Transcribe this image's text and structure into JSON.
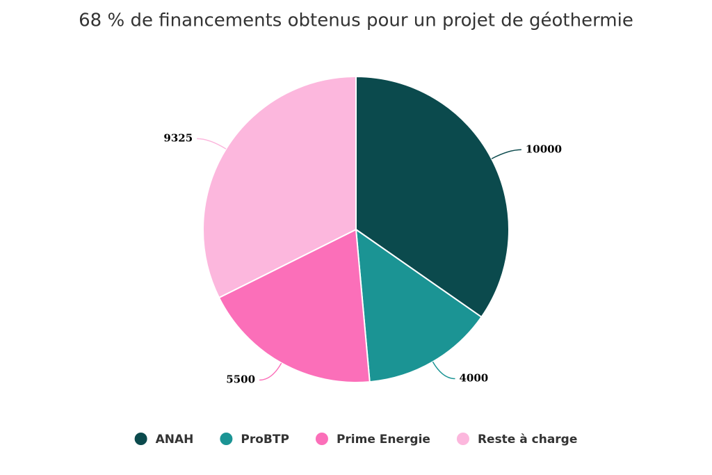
{
  "chart_data": {
    "type": "pie",
    "title": "68 % de financements obtenus pour un projet de géothermie",
    "categories": [
      "ANAH",
      "ProBTP",
      "Prime Energie",
      "Reste à charge"
    ],
    "values": [
      10000,
      4000,
      5500,
      9325
    ],
    "colors": [
      "#0b4a4d",
      "#1b9494",
      "#fb6fb9",
      "#fcb7dd"
    ],
    "legend": "bottom"
  }
}
